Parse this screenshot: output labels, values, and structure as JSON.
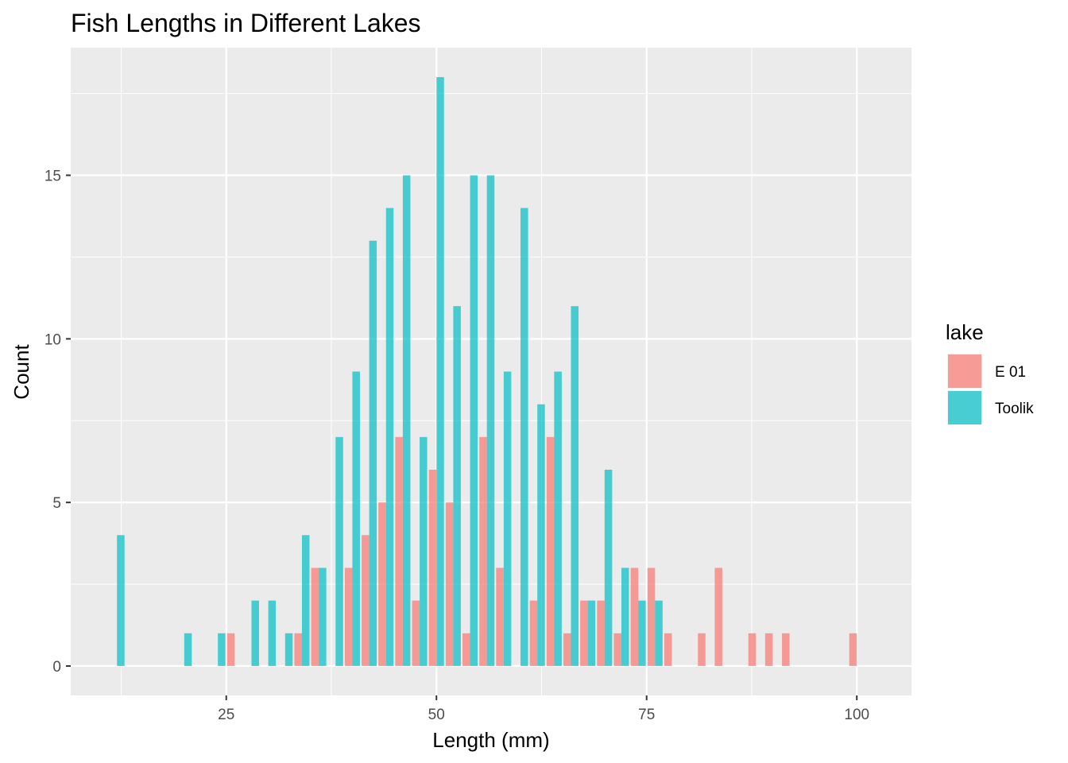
{
  "chart_data": {
    "type": "bar",
    "title": "Fish Lengths in Different Lakes",
    "xlabel": "Length (mm)",
    "ylabel": "Count",
    "xlim": [
      6.5,
      106.5
    ],
    "ylim": [
      -0.9,
      18.9
    ],
    "x_ticks": [
      25,
      50,
      75,
      100
    ],
    "y_ticks": [
      0,
      5,
      10,
      15
    ],
    "binwidth": 2,
    "grid": true,
    "legend": {
      "title": "lake",
      "position": "right",
      "entries": [
        "E 01",
        "Toolik"
      ]
    },
    "series": [
      {
        "name": "E 01",
        "color": "#F8766D",
        "x": [
          26,
          34,
          36,
          40,
          42,
          44,
          46,
          48,
          50,
          52,
          54,
          56,
          58,
          62,
          64,
          66,
          68,
          70,
          72,
          74,
          76,
          78,
          82,
          84,
          88,
          90,
          92,
          100
        ],
        "values": [
          1,
          1,
          3,
          3,
          4,
          5,
          7,
          2,
          6,
          5,
          1,
          7,
          3,
          2,
          7,
          1,
          2,
          2,
          1,
          3,
          3,
          1,
          1,
          3,
          1,
          1,
          1,
          1
        ]
      },
      {
        "name": "Toolik",
        "color": "#00BFC4",
        "x": [
          12,
          20,
          24,
          28,
          30,
          32,
          34,
          36,
          38,
          40,
          42,
          44,
          46,
          48,
          50,
          52,
          54,
          56,
          58,
          60,
          62,
          64,
          66,
          68,
          70,
          72,
          74,
          76
        ],
        "values": [
          4,
          1,
          1,
          2,
          2,
          1,
          4,
          3,
          7,
          9,
          13,
          14,
          15,
          7,
          18,
          11,
          15,
          15,
          9,
          14,
          8,
          9,
          11,
          2,
          6,
          3,
          2,
          2
        ]
      }
    ]
  }
}
